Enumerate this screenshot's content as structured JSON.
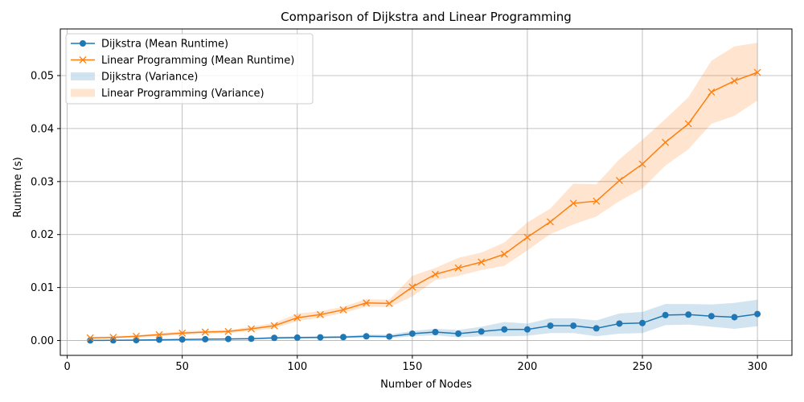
{
  "chart_data": {
    "type": "line",
    "title": "Comparison of Dijkstra and Linear Programming",
    "xlabel": "Number of Nodes",
    "ylabel": "Runtime (s)",
    "xlim": [
      -3,
      315
    ],
    "ylim": [
      -0.0028,
      0.0588
    ],
    "xticks": [
      0,
      50,
      100,
      150,
      200,
      250,
      300
    ],
    "xtick_labels": [
      "0",
      "50",
      "100",
      "150",
      "200",
      "250",
      "300"
    ],
    "yticks": [
      0.0,
      0.01,
      0.02,
      0.03,
      0.04,
      0.05
    ],
    "ytick_labels": [
      "0.00",
      "0.01",
      "0.02",
      "0.03",
      "0.04",
      "0.05"
    ],
    "grid": true,
    "legend_position": "top-left",
    "x": [
      10,
      20,
      30,
      40,
      50,
      60,
      70,
      80,
      90,
      100,
      110,
      120,
      130,
      140,
      150,
      160,
      170,
      180,
      190,
      200,
      210,
      220,
      230,
      240,
      250,
      260,
      270,
      280,
      290,
      300
    ],
    "series": [
      {
        "name": "Dijkstra (Mean Runtime)",
        "band_name": "Dijkstra (Variance)",
        "color": "#1f77b4",
        "marker": "circle",
        "values": [
          2e-05,
          4e-05,
          8e-05,
          0.00015,
          0.0002,
          0.00025,
          0.0003,
          0.00035,
          0.0005,
          0.00055,
          0.0006,
          0.00065,
          0.0008,
          0.00075,
          0.0013,
          0.0016,
          0.0013,
          0.0017,
          0.0021,
          0.0021,
          0.0028,
          0.0028,
          0.0023,
          0.0032,
          0.0033,
          0.0048,
          0.0049,
          0.0046,
          0.0044,
          0.005
        ],
        "lower": [
          1e-05,
          2e-05,
          4e-05,
          0.0001,
          0.00012,
          0.00015,
          0.0002,
          0.00022,
          0.0003,
          0.00035,
          0.0004,
          0.00045,
          0.0005,
          0.00045,
          0.0008,
          0.001,
          0.0006,
          0.0008,
          0.0008,
          0.0009,
          0.0014,
          0.0014,
          0.0008,
          0.0013,
          0.0014,
          0.0029,
          0.003,
          0.0026,
          0.0022,
          0.0027
        ],
        "upper": [
          3e-05,
          6e-05,
          0.00012,
          0.0002,
          0.00028,
          0.00035,
          0.0004,
          0.00048,
          0.0007,
          0.00075,
          0.0008,
          0.00085,
          0.0011,
          0.0011,
          0.0018,
          0.0022,
          0.002,
          0.0026,
          0.0035,
          0.0032,
          0.0042,
          0.0042,
          0.0038,
          0.0051,
          0.0054,
          0.0069,
          0.0069,
          0.0068,
          0.0071,
          0.0077
        ]
      },
      {
        "name": "Linear Programming (Mean Runtime)",
        "band_name": "Linear Programming (Variance)",
        "color": "#ff7f0e",
        "marker": "x",
        "values": [
          0.0005,
          0.0006,
          0.0008,
          0.0011,
          0.0014,
          0.0016,
          0.0017,
          0.0022,
          0.0028,
          0.0043,
          0.0049,
          0.0058,
          0.0071,
          0.007,
          0.0101,
          0.0125,
          0.0137,
          0.0148,
          0.0163,
          0.0195,
          0.0224,
          0.0259,
          0.0263,
          0.0302,
          0.0333,
          0.0374,
          0.0409,
          0.0469,
          0.049,
          0.0506
        ],
        "lower": [
          0.0003,
          0.0004,
          0.0006,
          0.0008,
          0.0011,
          0.0013,
          0.0014,
          0.0018,
          0.0023,
          0.0037,
          0.0043,
          0.0052,
          0.0064,
          0.0063,
          0.0083,
          0.0114,
          0.0122,
          0.0133,
          0.0141,
          0.017,
          0.0201,
          0.0219,
          0.0234,
          0.0263,
          0.0287,
          0.033,
          0.0361,
          0.0409,
          0.0424,
          0.0453
        ],
        "upper": [
          0.0007,
          0.0008,
          0.001,
          0.0014,
          0.0017,
          0.0019,
          0.002,
          0.0026,
          0.0033,
          0.0051,
          0.0055,
          0.0064,
          0.0078,
          0.0077,
          0.0122,
          0.0137,
          0.0156,
          0.0166,
          0.0185,
          0.0223,
          0.0249,
          0.0296,
          0.0295,
          0.0342,
          0.0379,
          0.0418,
          0.0459,
          0.0528,
          0.0555,
          0.0562
        ]
      }
    ]
  }
}
